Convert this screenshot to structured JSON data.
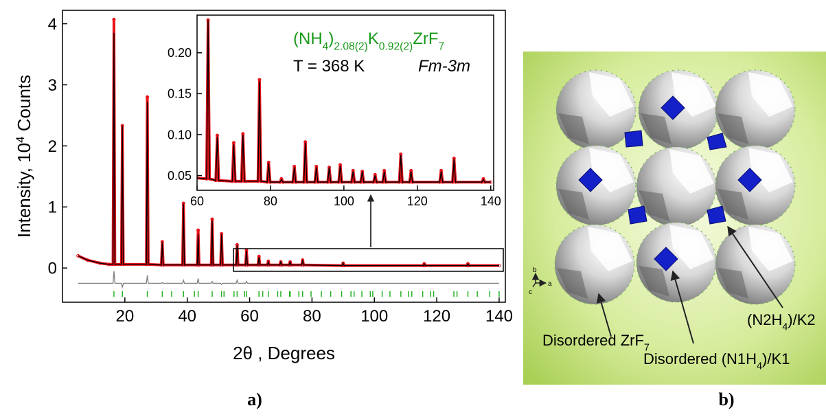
{
  "chart_data": [
    {
      "type": "line",
      "x_label": "2θ , Degrees",
      "y_label": [
        "Intensity, 10",
        "4",
        " Counts"
      ],
      "xlim": [
        0,
        142
      ],
      "ylim": [
        -0.56,
        4.22
      ],
      "xticks": [
        20,
        40,
        60,
        80,
        100,
        120,
        140
      ],
      "yticks": [
        0,
        1,
        2,
        3,
        4
      ],
      "x": [
        5,
        8,
        12,
        15,
        16.2,
        16.5,
        16.8,
        18.9,
        19.2,
        19.5,
        26.9,
        27.2,
        27.5,
        31.7,
        32,
        32.3,
        38.5,
        38.8,
        39.1,
        43.2,
        43.5,
        43.8,
        47.7,
        48,
        48.3,
        50.7,
        51,
        51.3,
        55.7,
        56,
        56.3,
        58.7,
        59,
        59.3,
        62.7,
        63,
        63.3,
        65.7,
        66,
        66.3,
        69.7,
        70,
        70.3,
        72.7,
        73,
        73.3,
        76.7,
        77,
        77.3,
        89.7,
        90,
        90.3,
        115.7,
        116,
        116.3,
        129.7,
        130,
        130.3,
        140
      ],
      "series": [
        {
          "style": "points",
          "color": "#e8121a",
          "values": [
            0.2,
            0.13,
            0.08,
            0.06,
            0.06,
            4.07,
            0.06,
            0.06,
            2.33,
            0.06,
            0.06,
            2.8,
            0.06,
            0.05,
            0.43,
            0.05,
            0.05,
            1.06,
            0.05,
            0.05,
            0.62,
            0.05,
            0.05,
            0.8,
            0.05,
            0.05,
            0.56,
            0.05,
            0.05,
            0.38,
            0.05,
            0.05,
            0.29,
            0.05,
            0.05,
            0.19,
            0.05,
            0.05,
            0.11,
            0.05,
            0.05,
            0.1,
            0.05,
            0.05,
            0.1,
            0.05,
            0.05,
            0.13,
            0.05,
            0.04,
            0.08,
            0.04,
            0.04,
            0.07,
            0.04,
            0.04,
            0.07,
            0.04,
            0.04
          ]
        },
        {
          "style": "line",
          "color": "#000000",
          "values": [
            0.2,
            0.13,
            0.08,
            0.06,
            0.06,
            3.85,
            0.06,
            0.06,
            2.33,
            0.06,
            0.06,
            2.72,
            0.06,
            0.05,
            0.42,
            0.05,
            0.05,
            1.05,
            0.05,
            0.05,
            0.55,
            0.05,
            0.05,
            0.78,
            0.05,
            0.05,
            0.55,
            0.05,
            0.05,
            0.37,
            0.05,
            0.05,
            0.28,
            0.05,
            0.05,
            0.18,
            0.05,
            0.05,
            0.1,
            0.05,
            0.05,
            0.1,
            0.05,
            0.05,
            0.1,
            0.05,
            0.05,
            0.13,
            0.05,
            0.04,
            0.08,
            0.04,
            0.04,
            0.07,
            0.04,
            0.04,
            0.07,
            0.04,
            0.04
          ]
        },
        {
          "style": "line",
          "color": "#808080",
          "values": [
            -0.25,
            -0.25,
            -0.25,
            -0.25,
            -0.25,
            -0.05,
            -0.25,
            -0.25,
            -0.32,
            -0.25,
            -0.25,
            -0.12,
            -0.25,
            -0.25,
            -0.24,
            -0.25,
            -0.25,
            -0.2,
            -0.25,
            -0.25,
            -0.17,
            -0.25,
            -0.25,
            -0.22,
            -0.25,
            -0.25,
            -0.27,
            -0.25,
            -0.25,
            -0.2,
            -0.25,
            -0.25,
            -0.22,
            -0.25,
            -0.25,
            -0.25,
            -0.25,
            -0.25,
            -0.25,
            -0.25,
            -0.25,
            -0.25,
            -0.25,
            -0.25,
            -0.25,
            -0.25,
            -0.25,
            -0.25,
            -0.25,
            -0.25,
            -0.25,
            -0.25,
            -0.25,
            -0.25,
            -0.25,
            -0.25,
            -0.25,
            -0.25,
            -0.25
          ]
        }
      ],
      "bragg_color": "#22b022",
      "bragg_positions": [
        16.5,
        19.2,
        27.2,
        32,
        35,
        38.8,
        42.3,
        43.5,
        48,
        51,
        51.8,
        55,
        56,
        58.4,
        59,
        63,
        64.2,
        66,
        69,
        70,
        72.8,
        73,
        75.8,
        77,
        79.7,
        83,
        86,
        89.5,
        92.5,
        93.5,
        96,
        98.7,
        99.5,
        102.5,
        105,
        108.5,
        111,
        112,
        115.5,
        118,
        119,
        125.5,
        126.5,
        130,
        133,
        137,
        140
      ]
    },
    {
      "type": "line",
      "formula": [
        "(NH",
        "4",
        ")",
        "2.08(2)",
        "K",
        "0.92(2)",
        "ZrF",
        "7"
      ],
      "formula_color": "#1a9a1a",
      "temperature": "T = 368 K",
      "space_group": "Fm-3m",
      "xlim": [
        60,
        140.8
      ],
      "ylim": [
        0.032,
        0.246
      ],
      "xticks": [
        60,
        80,
        100,
        120,
        140
      ],
      "yticks": [
        0.05,
        {
          "value": 0.1,
          "label": "0.10"
        },
        0.15,
        {
          "value": 0.2,
          "label": "0.20"
        }
      ],
      "x": [
        60,
        62.6,
        63,
        63.4,
        65.1,
        65.5,
        65.9,
        69.6,
        70,
        70.4,
        72.1,
        72.5,
        72.9,
        76.6,
        77,
        77.4,
        79.1,
        79.5,
        79.9,
        82.6,
        83,
        83.4,
        86.1,
        86.5,
        86.9,
        89.1,
        89.5,
        89.9,
        92.1,
        92.5,
        92.9,
        95.6,
        96,
        96.4,
        98.6,
        99,
        99.4,
        102.1,
        102.5,
        102.9,
        104.6,
        105,
        105.4,
        108.1,
        108.5,
        108.9,
        110.6,
        111,
        111.4,
        115.1,
        115.5,
        115.9,
        117.9,
        118.3,
        118.7,
        126.1,
        126.5,
        126.9,
        129.6,
        130,
        130.4,
        137.6,
        138,
        138.4,
        140
      ],
      "series": [
        {
          "style": "points",
          "color": "#e8121a",
          "values": [
            0.047,
            0.046,
            0.24,
            0.046,
            0.044,
            0.099,
            0.044,
            0.043,
            0.09,
            0.043,
            0.043,
            0.101,
            0.043,
            0.043,
            0.167,
            0.043,
            0.042,
            0.066,
            0.042,
            0.042,
            0.046,
            0.042,
            0.042,
            0.061,
            0.042,
            0.042,
            0.091,
            0.042,
            0.042,
            0.061,
            0.042,
            0.042,
            0.06,
            0.042,
            0.042,
            0.063,
            0.042,
            0.042,
            0.056,
            0.042,
            0.042,
            0.055,
            0.042,
            0.042,
            0.051,
            0.042,
            0.042,
            0.056,
            0.042,
            0.042,
            0.076,
            0.042,
            0.042,
            0.056,
            0.042,
            0.042,
            0.056,
            0.042,
            0.042,
            0.071,
            0.042,
            0.042,
            0.046,
            0.042,
            0.042
          ]
        },
        {
          "style": "line",
          "color": "#000000",
          "values": [
            0.047,
            0.046,
            0.24,
            0.046,
            0.044,
            0.097,
            0.044,
            0.043,
            0.088,
            0.043,
            0.043,
            0.1,
            0.043,
            0.043,
            0.165,
            0.043,
            0.042,
            0.065,
            0.042,
            0.042,
            0.045,
            0.042,
            0.042,
            0.06,
            0.042,
            0.042,
            0.09,
            0.042,
            0.042,
            0.06,
            0.042,
            0.042,
            0.06,
            0.042,
            0.042,
            0.062,
            0.042,
            0.042,
            0.055,
            0.042,
            0.042,
            0.055,
            0.042,
            0.042,
            0.05,
            0.042,
            0.042,
            0.055,
            0.042,
            0.042,
            0.075,
            0.042,
            0.042,
            0.055,
            0.042,
            0.042,
            0.055,
            0.042,
            0.042,
            0.07,
            0.042,
            0.042,
            0.045,
            0.042,
            0.042
          ]
        }
      ]
    }
  ],
  "panel_labels": [
    "a)",
    "b)"
  ],
  "structure": {
    "axes": [
      "b",
      "a",
      "c"
    ],
    "zrf7_label": [
      "Disordered ZrF",
      "7"
    ],
    "n2_label": [
      "(N2H",
      "4",
      ")/K2"
    ],
    "n1_label": [
      "Disordered (N1H",
      "4",
      ")/K1"
    ]
  }
}
